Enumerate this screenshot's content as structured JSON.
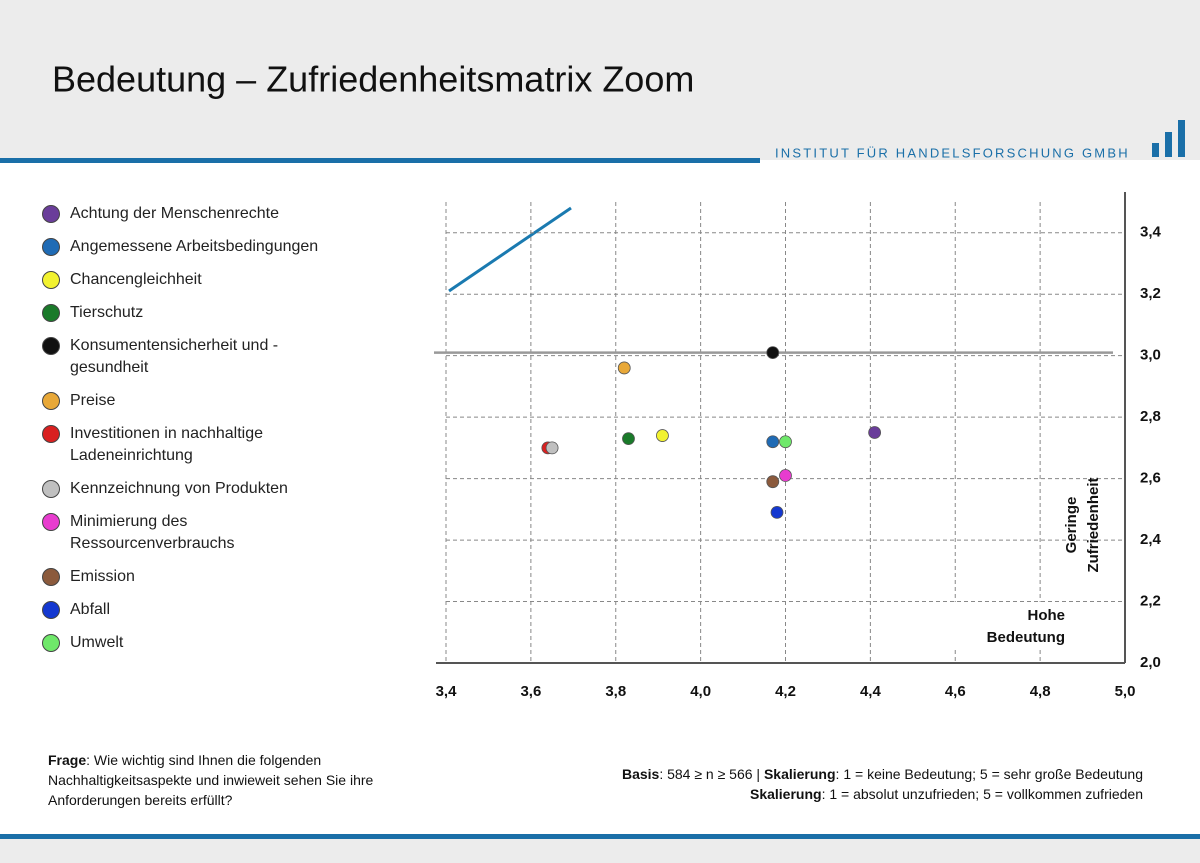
{
  "header": {
    "title": "Bedeutung – Zufriedenheitsmatrix Zoom",
    "institute": "INSTITUT FÜR HANDELSFORSCHUNG GMBH"
  },
  "chart_data": {
    "type": "scatter",
    "series": [
      {
        "name": "Achtung der Menschenrechte",
        "color": "#6a3d9a",
        "x": [
          4.41
        ],
        "values": [
          2.75
        ]
      },
      {
        "name": "Angemessene Arbeitsbedingungen",
        "color": "#1f6bb5",
        "x": [
          4.17
        ],
        "values": [
          2.72
        ]
      },
      {
        "name": "Chancengleichheit",
        "color": "#f2f230",
        "x": [
          3.91
        ],
        "values": [
          2.74
        ]
      },
      {
        "name": "Tierschutz",
        "color": "#1a7a2a",
        "x": [
          3.83
        ],
        "values": [
          2.73
        ]
      },
      {
        "name": "Konsumentensicherheit und - gesundheit",
        "color": "#111111",
        "x": [
          4.17
        ],
        "values": [
          3.01
        ]
      },
      {
        "name": "Preise",
        "color": "#e8a838",
        "x": [
          3.82
        ],
        "values": [
          2.96
        ]
      },
      {
        "name": "Investitionen in nachhaltige Ladeneinrichtung",
        "color": "#d92020",
        "x": [
          3.64
        ],
        "values": [
          2.7
        ]
      },
      {
        "name": "Kennzeichnung von Produkten",
        "color": "#c0c0c0",
        "x": [
          3.65
        ],
        "values": [
          2.7
        ]
      },
      {
        "name": "Minimierung des Ressourcenverbrauchs",
        "color": "#e83ccf",
        "x": [
          4.2
        ],
        "values": [
          2.61
        ]
      },
      {
        "name": "Emission",
        "color": "#8b5a3c",
        "x": [
          4.17
        ],
        "values": [
          2.59
        ]
      },
      {
        "name": "Abfall",
        "color": "#1438d0",
        "x": [
          4.18
        ],
        "values": [
          2.49
        ]
      },
      {
        "name": "Umwelt",
        "color": "#6fe86a",
        "x": [
          4.2
        ],
        "values": [
          2.72
        ]
      }
    ],
    "xlim": [
      3.4,
      5.0
    ],
    "ylim": [
      2.0,
      3.5
    ],
    "xticks": [
      {
        "value": 3.4,
        "label": "3,4"
      },
      {
        "value": 3.6,
        "label": "3,6"
      },
      {
        "value": 3.8,
        "label": "3,8"
      },
      {
        "value": 4.0,
        "label": "4,0"
      },
      {
        "value": 4.2,
        "label": "4,2"
      },
      {
        "value": 4.4,
        "label": "4,4"
      },
      {
        "value": 4.6,
        "label": "4,6"
      },
      {
        "value": 4.8,
        "label": "4,8"
      },
      {
        "value": 5.0,
        "label": "5,0"
      }
    ],
    "yticks": [
      {
        "value": 2.0,
        "label": "2,0"
      },
      {
        "value": 2.2,
        "label": "2,2"
      },
      {
        "value": 2.4,
        "label": "2,4"
      },
      {
        "value": 2.6,
        "label": "2,6"
      },
      {
        "value": 2.8,
        "label": "2,8"
      },
      {
        "value": 3.0,
        "label": "3,0"
      },
      {
        "value": 3.2,
        "label": "3,2"
      },
      {
        "value": 3.4,
        "label": "3,4"
      }
    ],
    "reference_y": 3.01,
    "grid": true,
    "y_annotation": [
      "Geringe",
      "Zufriedenheit"
    ],
    "x_annotation": [
      "Hohe",
      "Bedeutung"
    ]
  },
  "footer": {
    "question_label": "Frage",
    "question_lines": [
      ": Wie wichtig sind Ihnen die folgenden",
      "Nachhaltigkeitsaspekte und inwieweit sehen Sie ihre",
      "Anforderungen bereits erfüllt?"
    ],
    "basis_label": "Basis",
    "basis_text": ": 584 ≥ n ≥ 566 | ",
    "scale1_label": "Skalierung",
    "scale1_text": ": 1 = keine Bedeutung; 5 = sehr große Bedeutung",
    "scale2_label": "Skalierung",
    "scale2_text": ": 1 = absolut unzufrieden; 5 = vollkommen zufrieden"
  }
}
